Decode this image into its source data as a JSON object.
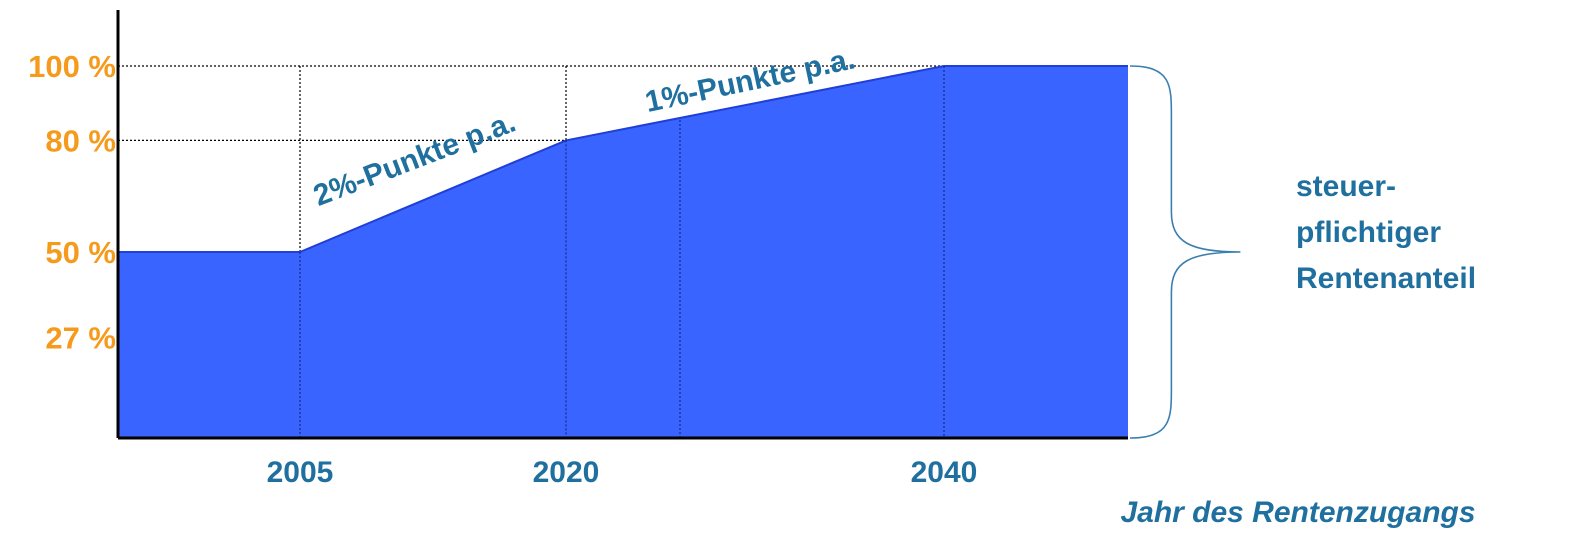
{
  "chart_data": {
    "type": "area",
    "title": "",
    "xlabel": "Jahr des Rentenzugangs",
    "ylabel": "",
    "x": [
      1995,
      2005,
      2020,
      2040,
      2050
    ],
    "y": [
      50,
      50,
      80,
      100,
      100
    ],
    "x_ticks": [
      {
        "value": 2005,
        "label": "2005"
      },
      {
        "value": 2020,
        "label": "2020"
      },
      {
        "value": 2040,
        "label": "2040"
      }
    ],
    "y_ticks": [
      {
        "value": 27,
        "label": "27 %"
      },
      {
        "value": 50,
        "label": "50 %"
      },
      {
        "value": 80,
        "label": "80 %"
      },
      {
        "value": 100,
        "label": "100 %"
      }
    ],
    "ylim": [
      0,
      100
    ],
    "xlim": [
      1995,
      2050
    ],
    "grid": true,
    "legend": "none",
    "annotations": [
      {
        "text": "2%-Punkte p.a.",
        "x_range": [
          2005,
          2020
        ]
      },
      {
        "text": "1%-Punkte p.a.",
        "x_range": [
          2020,
          2040
        ]
      }
    ],
    "side_label": [
      "steuer-",
      "pflichtiger",
      "Rentenanteil"
    ]
  },
  "colors": {
    "fill": "#3a64ff",
    "line": "#1f3fd6",
    "axis": "#000000",
    "y_tick_text": "#f59a1b",
    "text": "#1f6f9f"
  }
}
